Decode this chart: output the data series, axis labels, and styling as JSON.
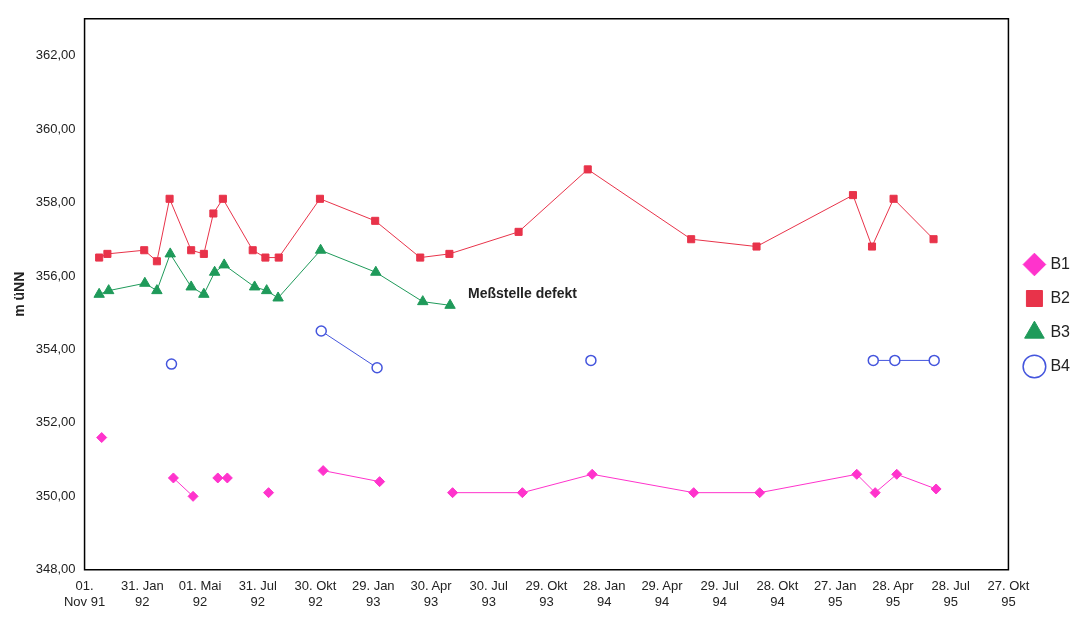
{
  "chart_data": {
    "type": "line",
    "ylabel": "m üNN",
    "ylim": [
      348,
      363
    ],
    "yticks": [
      {
        "value": 348,
        "label": "348,00"
      },
      {
        "value": 350,
        "label": "350,00"
      },
      {
        "value": 352,
        "label": "352,00"
      },
      {
        "value": 354,
        "label": "354,00"
      },
      {
        "value": 356,
        "label": "356,00"
      },
      {
        "value": 358,
        "label": "358,00"
      },
      {
        "value": 360,
        "label": "360,00"
      },
      {
        "value": 362,
        "label": "362,00"
      }
    ],
    "xlim": [
      "1991-11-01",
      "1995-10-27"
    ],
    "xticks": [
      {
        "value": "1991-11-01",
        "label": "01.\nNov 91"
      },
      {
        "value": "1992-01-31",
        "label": "31. Jan\n92"
      },
      {
        "value": "1992-05-01",
        "label": "01. Mai\n92"
      },
      {
        "value": "1992-07-31",
        "label": "31. Jul\n92"
      },
      {
        "value": "1992-10-30",
        "label": "30. Okt\n92"
      },
      {
        "value": "1993-01-29",
        "label": "29. Jan\n93"
      },
      {
        "value": "1993-04-30",
        "label": "30. Apr\n93"
      },
      {
        "value": "1993-07-30",
        "label": "30. Jul\n93"
      },
      {
        "value": "1993-10-29",
        "label": "29. Okt\n93"
      },
      {
        "value": "1994-01-28",
        "label": "28. Jan\n94"
      },
      {
        "value": "1994-04-29",
        "label": "29. Apr\n94"
      },
      {
        "value": "1994-07-29",
        "label": "29. Jul\n94"
      },
      {
        "value": "1994-10-28",
        "label": "28. Okt\n94"
      },
      {
        "value": "1995-01-27",
        "label": "27. Jan\n95"
      },
      {
        "value": "1995-04-28",
        "label": "28. Apr\n95"
      },
      {
        "value": "1995-07-28",
        "label": "28. Jul\n95"
      },
      {
        "value": "1995-10-27",
        "label": "27. Okt\n95"
      }
    ],
    "grid": false,
    "legend": "right",
    "line_style": "solid",
    "annotations": [
      "Meßstelle defekt"
    ],
    "series": [
      {
        "name": "B1",
        "color": "#ff33cc",
        "marker": "diamond",
        "x": [
          "1991-11-28",
          "1992-01-15",
          "1992-03-20",
          "1992-04-20",
          "1992-05-10",
          "1992-05-29",
          "1992-06-13",
          "1992-07-15",
          "1992-08-17",
          "1992-10-01",
          "1992-11-11",
          "1993-02-08",
          "1993-05-01",
          "1993-06-03",
          "1993-09-21",
          "1994-01-09",
          "1994-06-18",
          "1994-09-30",
          "1995-03-02",
          "1995-03-31",
          "1995-05-04",
          "1995-07-05"
        ],
        "values": [
          351.6,
          null,
          350.5,
          350.0,
          null,
          350.5,
          350.5,
          null,
          350.1,
          null,
          350.7,
          350.4,
          null,
          350.1,
          350.1,
          350.6,
          350.1,
          350.1,
          350.6,
          350.1,
          350.6,
          350.2
        ]
      },
      {
        "name": "B2",
        "color": "#e8334a",
        "marker": "square",
        "x": [
          "1991-11-24",
          "1991-12-07",
          "1992-02-03",
          "1992-02-23",
          "1992-03-14",
          "1992-04-17",
          "1992-05-07",
          "1992-05-22",
          "1992-06-06",
          "1992-07-23",
          "1992-08-12",
          "1992-09-02",
          "1992-11-06",
          "1993-02-01",
          "1993-04-13",
          "1993-05-29",
          "1993-09-15",
          "1994-01-02",
          "1994-06-14",
          "1994-09-25",
          "1995-02-24",
          "1995-03-26",
          "1995-04-29",
          "1995-07-01"
        ],
        "values": [
          356.5,
          356.6,
          356.7,
          356.4,
          358.1,
          356.7,
          356.6,
          357.7,
          358.1,
          356.7,
          356.5,
          356.5,
          358.1,
          357.5,
          356.5,
          356.6,
          357.2,
          358.9,
          357.0,
          356.8,
          358.2,
          356.8,
          358.1,
          357.0
        ]
      },
      {
        "name": "B3",
        "color": "#1f9a5a",
        "marker": "triangle",
        "x": [
          "1991-11-24",
          "1991-12-09",
          "1992-02-04",
          "1992-02-23",
          "1992-03-15",
          "1992-04-17",
          "1992-05-07",
          "1992-05-24",
          "1992-06-08",
          "1992-07-26",
          "1992-08-14",
          "1992-09-01",
          "1992-11-07",
          "1993-02-02",
          "1993-04-17",
          "1993-05-30"
        ],
        "values": [
          355.5,
          355.6,
          355.8,
          355.6,
          356.6,
          355.7,
          355.5,
          356.1,
          356.3,
          355.7,
          355.6,
          355.4,
          356.7,
          356.1,
          355.3,
          355.2
        ]
      },
      {
        "name": "B4",
        "color": "#4455dd",
        "marker": "circle",
        "x": [
          "1992-03-17",
          "1992-07-01",
          "1992-11-08",
          "1993-02-04",
          "1993-07-01",
          "1994-01-07",
          "1994-06-01",
          "1995-03-28",
          "1995-05-01",
          "1995-07-02"
        ],
        "values": [
          353.6,
          null,
          354.5,
          353.5,
          null,
          353.7,
          null,
          353.7,
          353.7,
          353.7
        ]
      }
    ]
  }
}
